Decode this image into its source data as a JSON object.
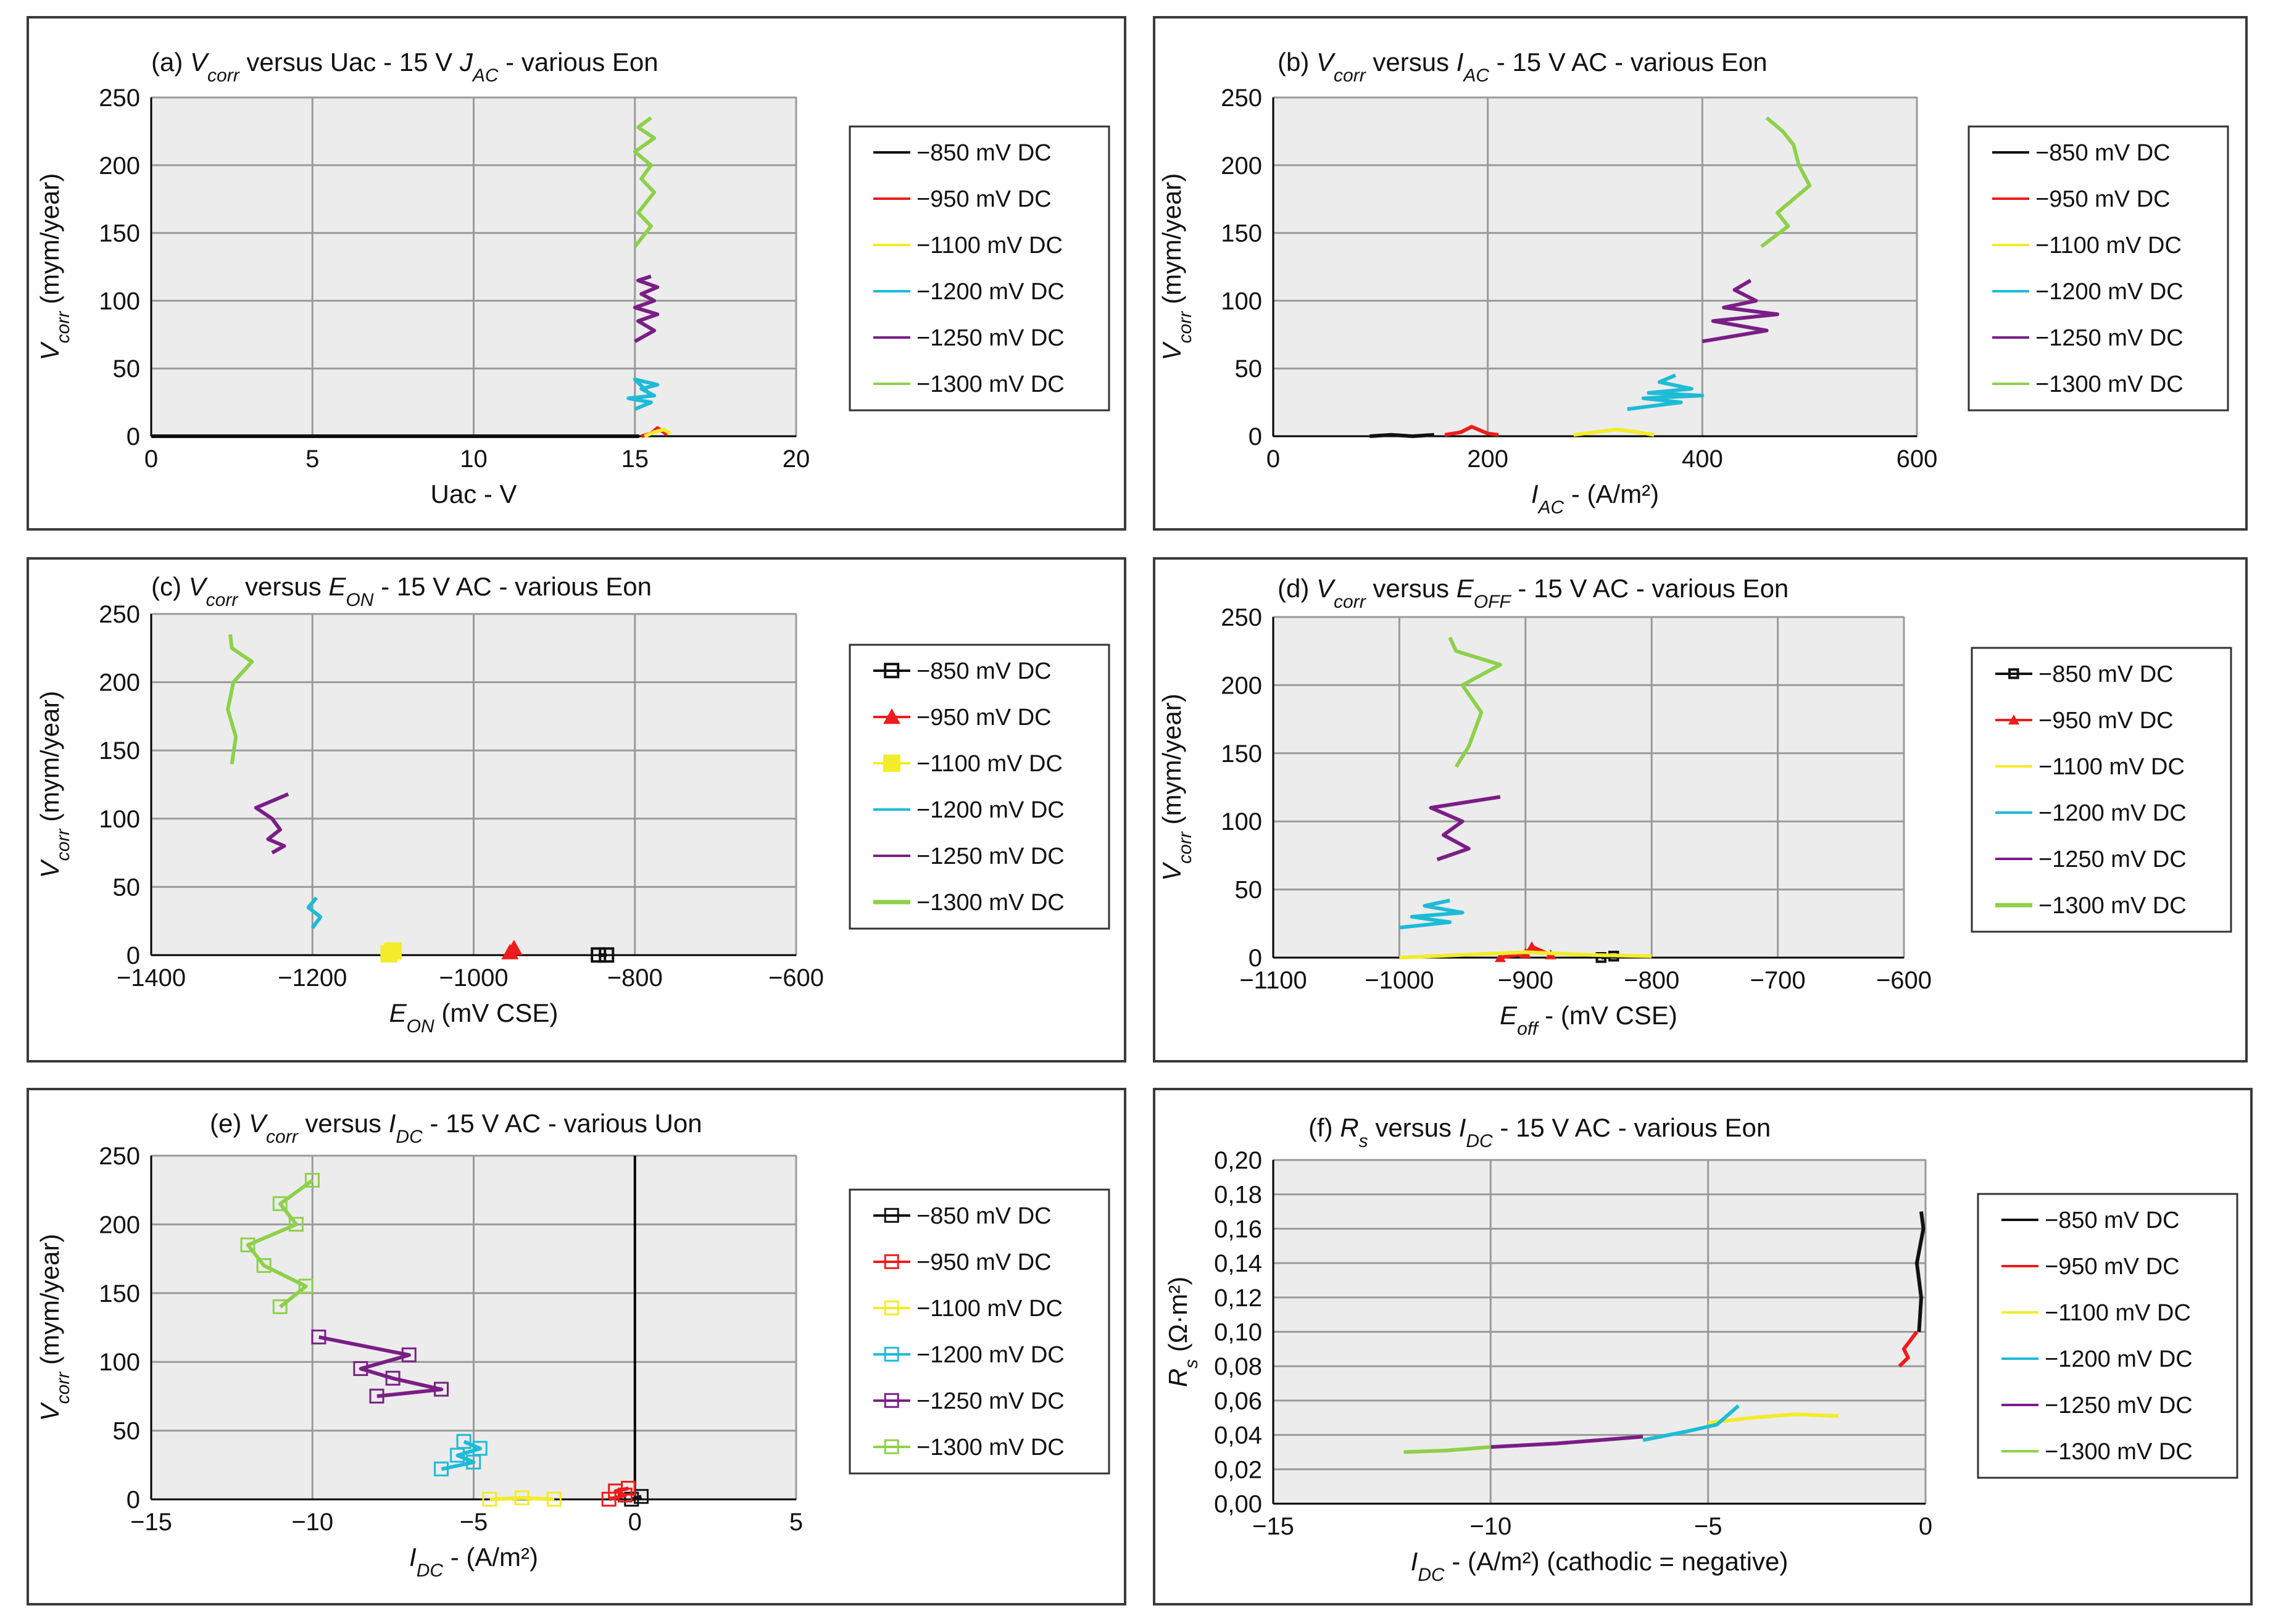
{
  "figure": {
    "series_colors": {
      "-850": "#111111",
      "-950": "#ee1c1c",
      "-1100": "#f2ec2a",
      "-1200": "#1ebbd7",
      "-1250": "#7a1e86",
      "-1300": "#8dd14a"
    }
  },
  "chart_data": [
    {
      "id": "a",
      "type": "line",
      "title": {
        "prefix": "(a)",
        "main": "V",
        "main_sub": "corr",
        "mid": " versus Uac - 15 V ",
        "v2": "J",
        "v2_sub": "AC",
        "tail": " - various Eon"
      },
      "ylabel": {
        "main": "V",
        "sub": "corr",
        "rest": " (mym/year)"
      },
      "xlabel": {
        "main": "Uac - V",
        "sub": "",
        "rest": ""
      },
      "xlim": [
        0,
        20
      ],
      "ylim": [
        0,
        250
      ],
      "xticks": [
        0,
        5,
        10,
        15,
        20
      ],
      "xtick_labels": [
        "0",
        "5",
        "10",
        "15",
        "20"
      ],
      "yticks": [
        0,
        50,
        100,
        150,
        200,
        250
      ],
      "ytick_labels": [
        "0",
        "50",
        "100",
        "150",
        "200",
        "250"
      ],
      "marker": "none",
      "legend": [
        "−850 mV DC",
        "−950 mV DC",
        "−1100 mV DC",
        "−1200 mV DC",
        "−1250 mV DC",
        "−1300 mV DC"
      ],
      "series": [
        {
          "key": "-850",
          "x": [
            0,
            15.0,
            14.6,
            15.1,
            14.8
          ],
          "y": [
            0,
            0,
            0,
            0,
            0
          ]
        },
        {
          "key": "-950",
          "x": [
            15.2,
            15.5,
            15.7,
            15.9,
            16.0
          ],
          "y": [
            0,
            2,
            6,
            3,
            1
          ]
        },
        {
          "key": "-1100",
          "x": [
            15.3,
            15.6,
            15.9,
            16.1
          ],
          "y": [
            0,
            3,
            5,
            2
          ]
        },
        {
          "key": "-1200",
          "x": [
            15.0,
            15.5,
            14.8,
            15.6,
            15.2,
            15.7,
            15.0,
            15.5
          ],
          "y": [
            20,
            25,
            28,
            30,
            35,
            38,
            42,
            30
          ]
        },
        {
          "key": "-1250",
          "x": [
            15.0,
            15.6,
            15.1,
            15.7,
            15.0,
            15.6,
            15.2,
            15.7,
            15.1,
            15.5
          ],
          "y": [
            70,
            78,
            85,
            90,
            95,
            100,
            105,
            110,
            115,
            118
          ]
        },
        {
          "key": "-1300",
          "x": [
            15.0,
            15.5,
            15.1,
            15.6,
            15.2,
            15.5,
            15.0,
            15.6,
            15.1,
            15.5
          ],
          "y": [
            140,
            155,
            165,
            180,
            190,
            200,
            210,
            220,
            228,
            235
          ]
        }
      ]
    },
    {
      "id": "b",
      "type": "line",
      "title": {
        "prefix": "(b)",
        "main": "V",
        "main_sub": "corr",
        "mid": " versus ",
        "v2": "I",
        "v2_sub": "AC",
        "tail": " - 15 V AC - various Eon"
      },
      "ylabel": {
        "main": "V",
        "sub": "corr",
        "rest": " (mym/year)"
      },
      "xlabel": {
        "main": "I",
        "sub": "AC",
        "rest": " - (A/m²)"
      },
      "xlim": [
        0,
        600
      ],
      "ylim": [
        0,
        250
      ],
      "xticks": [
        0,
        200,
        400,
        600
      ],
      "xtick_labels": [
        "0",
        "200",
        "400",
        "600"
      ],
      "yticks": [
        0,
        50,
        100,
        150,
        200,
        250
      ],
      "ytick_labels": [
        "0",
        "50",
        "100",
        "150",
        "200",
        "250"
      ],
      "marker": "none",
      "legend": [
        "−850 mV DC",
        "−950 mV DC",
        "−1100 mV DC",
        "−1200 mV DC",
        "−1250 mV DC",
        "−1300 mV DC"
      ],
      "series": [
        {
          "key": "-850",
          "x": [
            90,
            110,
            130,
            150
          ],
          "y": [
            0,
            1,
            0,
            1
          ]
        },
        {
          "key": "-950",
          "x": [
            160,
            175,
            185,
            200,
            210
          ],
          "y": [
            1,
            3,
            7,
            2,
            1
          ]
        },
        {
          "key": "-1100",
          "x": [
            280,
            300,
            320,
            340,
            355
          ],
          "y": [
            1,
            3,
            5,
            3,
            1
          ]
        },
        {
          "key": "-1200",
          "x": [
            330,
            380,
            345,
            400,
            350,
            390,
            360,
            375
          ],
          "y": [
            20,
            25,
            28,
            30,
            32,
            35,
            40,
            45
          ]
        },
        {
          "key": "-1250",
          "x": [
            400,
            460,
            410,
            470,
            420,
            450,
            430,
            445
          ],
          "y": [
            70,
            78,
            85,
            90,
            95,
            100,
            108,
            115
          ]
        },
        {
          "key": "-1300",
          "x": [
            455,
            480,
            470,
            500,
            490,
            485,
            475,
            460
          ],
          "y": [
            140,
            155,
            165,
            185,
            200,
            215,
            225,
            235
          ]
        }
      ]
    },
    {
      "id": "c",
      "type": "line",
      "title": {
        "prefix": "(c)",
        "main": "V",
        "main_sub": "corr",
        "mid": " versus ",
        "v2": "E",
        "v2_sub": "ON",
        "tail": " - 15 V AC - various Eon"
      },
      "ylabel": {
        "main": "V",
        "sub": "corr",
        "rest": " (mym/year)"
      },
      "xlabel": {
        "main": "E",
        "sub": "ON",
        "rest": " (mV CSE)"
      },
      "xlim": [
        -1400,
        -600
      ],
      "ylim": [
        0,
        250
      ],
      "xticks": [
        -1400,
        -1200,
        -1000,
        -800,
        -600
      ],
      "xtick_labels": [
        "−1400",
        "−1200",
        "−1000",
        "−800",
        "−600"
      ],
      "yticks": [
        0,
        50,
        100,
        150,
        200,
        250
      ],
      "ytick_labels": [
        "0",
        "50",
        "100",
        "150",
        "200",
        "250"
      ],
      "marker": "shapes",
      "legend": [
        "−850 mV DC",
        "−950 mV DC",
        "−1100 mV DC",
        "−1200 mV DC",
        "−1250 mV DC",
        "−1300 mV DC"
      ],
      "series": [
        {
          "key": "-850",
          "x": [
            -845,
            -835
          ],
          "y": [
            0,
            0
          ]
        },
        {
          "key": "-950",
          "x": [
            -955,
            -950
          ],
          "y": [
            2,
            5
          ]
        },
        {
          "key": "-1100",
          "x": [
            -1105,
            -1100
          ],
          "y": [
            1,
            3
          ]
        },
        {
          "key": "-1200",
          "x": [
            -1200,
            -1190,
            -1205,
            -1195
          ],
          "y": [
            20,
            28,
            35,
            42
          ]
        },
        {
          "key": "-1250",
          "x": [
            -1250,
            -1235,
            -1255,
            -1240,
            -1250,
            -1270,
            -1230
          ],
          "y": [
            75,
            80,
            85,
            92,
            100,
            108,
            118
          ]
        },
        {
          "key": "-1300",
          "x": [
            -1300,
            -1295,
            -1305,
            -1298,
            -1275,
            -1300,
            -1302
          ],
          "y": [
            140,
            160,
            180,
            200,
            215,
            225,
            235
          ]
        }
      ]
    },
    {
      "id": "d",
      "type": "line",
      "title": {
        "prefix": "(d)",
        "main": "V",
        "main_sub": "corr",
        "mid": " versus ",
        "v2": "E",
        "v2_sub": "OFF",
        "tail": " - 15 V AC - various Eon"
      },
      "ylabel": {
        "main": "V",
        "sub": "corr",
        "rest": " (mym/year)"
      },
      "xlabel": {
        "main": "E",
        "sub": "off",
        "rest": " - (mV CSE)"
      },
      "xlim": [
        -1100,
        -600
      ],
      "ylim": [
        0,
        250
      ],
      "xticks": [
        -1100,
        -1000,
        -900,
        -800,
        -700,
        -600
      ],
      "xtick_labels": [
        "−1100",
        "−1000",
        "−900",
        "−800",
        "−700",
        "−600"
      ],
      "yticks": [
        0,
        50,
        100,
        150,
        200,
        250
      ],
      "ytick_labels": [
        "0",
        "50",
        "100",
        "150",
        "200",
        "250"
      ],
      "marker": "shapes-small",
      "legend": [
        "−850 mV DC",
        "−950 mV DC",
        "−1100 mV DC",
        "−1200 mV DC",
        "−1250 mV DC",
        "−1300 mV DC"
      ],
      "series": [
        {
          "key": "-850",
          "x": [
            -840,
            -830
          ],
          "y": [
            0,
            1
          ]
        },
        {
          "key": "-950",
          "x": [
            -920,
            -900,
            -895,
            -880
          ],
          "y": [
            0,
            3,
            8,
            2
          ]
        },
        {
          "key": "-1100",
          "x": [
            -1000,
            -950,
            -900,
            -850,
            -800
          ],
          "y": [
            0,
            2,
            4,
            2,
            1
          ]
        },
        {
          "key": "-1200",
          "x": [
            -1000,
            -960,
            -990,
            -950,
            -980,
            -960
          ],
          "y": [
            22,
            26,
            30,
            33,
            38,
            42
          ]
        },
        {
          "key": "-1250",
          "x": [
            -970,
            -945,
            -965,
            -950,
            -975,
            -920
          ],
          "y": [
            72,
            80,
            90,
            100,
            110,
            118
          ]
        },
        {
          "key": "-1300",
          "x": [
            -955,
            -945,
            -935,
            -950,
            -920,
            -955,
            -960
          ],
          "y": [
            140,
            155,
            180,
            200,
            215,
            225,
            235
          ]
        }
      ]
    },
    {
      "id": "e",
      "type": "line",
      "title": {
        "prefix": "(e)",
        "main": "V",
        "main_sub": "corr",
        "mid": " versus ",
        "v2": "I",
        "v2_sub": "DC",
        "tail": " - 15 V AC - various Uon"
      },
      "ylabel": {
        "main": "V",
        "sub": "corr",
        "rest": " (mym/year)"
      },
      "xlabel": {
        "main": "I",
        "sub": "DC",
        "rest": " - (A/m²)"
      },
      "xlim": [
        -15,
        5
      ],
      "ylim": [
        0,
        250
      ],
      "xticks": [
        -15,
        -10,
        -5,
        0,
        5
      ],
      "xtick_labels": [
        "−15",
        "−10",
        "−5",
        "0",
        "5"
      ],
      "yticks": [
        0,
        50,
        100,
        150,
        200,
        250
      ],
      "ytick_labels": [
        "0",
        "50",
        "100",
        "150",
        "200",
        "250"
      ],
      "marker": "hollow",
      "legend": [
        "−850 mV DC",
        "−950 mV DC",
        "−1100 mV DC",
        "−1200 mV DC",
        "−1250 mV DC",
        "−1300 mV DC"
      ],
      "series": [
        {
          "key": "-850",
          "x": [
            -0.1,
            0.2
          ],
          "y": [
            0,
            2
          ]
        },
        {
          "key": "-950",
          "x": [
            -0.8,
            -0.3,
            -0.6,
            -0.2
          ],
          "y": [
            0,
            3,
            6,
            8
          ]
        },
        {
          "key": "-1100",
          "x": [
            -4.5,
            -3.5,
            -2.5
          ],
          "y": [
            0,
            1,
            0
          ]
        },
        {
          "key": "-1200",
          "x": [
            -6.0,
            -5.0,
            -5.5,
            -4.8,
            -5.3
          ],
          "y": [
            22,
            27,
            32,
            37,
            42
          ]
        },
        {
          "key": "-1250",
          "x": [
            -8.0,
            -6.0,
            -7.5,
            -8.5,
            -7.0,
            -9.8
          ],
          "y": [
            75,
            80,
            88,
            95,
            105,
            118
          ]
        },
        {
          "key": "-1300",
          "x": [
            -11.0,
            -10.2,
            -11.5,
            -12.0,
            -10.5,
            -11.0,
            -10.0
          ],
          "y": [
            140,
            155,
            170,
            185,
            200,
            215,
            232
          ]
        }
      ]
    },
    {
      "id": "f",
      "type": "line",
      "title": {
        "prefix": "(f)",
        "main": "R",
        "main_sub": "s",
        "mid": " versus ",
        "v2": "I",
        "v2_sub": "DC",
        "tail": " - 15 V AC - various Eon"
      },
      "ylabel": {
        "main": "R",
        "sub": "s",
        "rest": " (Ω·m²)"
      },
      "xlabel": {
        "main": "I",
        "sub": "DC",
        "rest": " - (A/m²) (cathodic = negative)"
      },
      "xlim": [
        -15,
        0
      ],
      "ylim": [
        0,
        0.2
      ],
      "xticks": [
        -15,
        -10,
        -5,
        0
      ],
      "xtick_labels": [
        "−15",
        "−10",
        "−5",
        "0"
      ],
      "yticks": [
        0,
        0.02,
        0.04,
        0.06,
        0.08,
        0.1,
        0.12,
        0.14,
        0.16,
        0.18,
        0.2
      ],
      "ytick_labels": [
        "0,00",
        "0,02",
        "0,04",
        "0,06",
        "0,08",
        "0,10",
        "0,12",
        "0,14",
        "0,16",
        "0,18",
        "0,20"
      ],
      "marker": "none",
      "legend": [
        "−850 mV DC",
        "−950 mV DC",
        "−1100 mV DC",
        "−1200 mV DC",
        "−1250 mV DC",
        "−1300 mV DC"
      ],
      "series": [
        {
          "key": "-850",
          "x": [
            -0.15,
            -0.1,
            -0.2,
            -0.05,
            -0.1
          ],
          "y": [
            0.1,
            0.12,
            0.14,
            0.16,
            0.17
          ]
        },
        {
          "key": "-950",
          "x": [
            -0.6,
            -0.4,
            -0.5,
            -0.2
          ],
          "y": [
            0.08,
            0.085,
            0.09,
            0.1
          ]
        },
        {
          "key": "-1100",
          "x": [
            -5.0,
            -4.0,
            -3.0,
            -2.0
          ],
          "y": [
            0.047,
            0.05,
            0.052,
            0.051
          ]
        },
        {
          "key": "-1200",
          "x": [
            -6.5,
            -5.5,
            -4.8,
            -4.3
          ],
          "y": [
            0.037,
            0.042,
            0.046,
            0.057
          ]
        },
        {
          "key": "-1250",
          "x": [
            -10.0,
            -8.5,
            -7.5,
            -6.5
          ],
          "y": [
            0.033,
            0.035,
            0.037,
            0.039
          ]
        },
        {
          "key": "-1300",
          "x": [
            -12.0,
            -11.0,
            -10.0
          ],
          "y": [
            0.03,
            0.031,
            0.033
          ]
        }
      ]
    }
  ]
}
